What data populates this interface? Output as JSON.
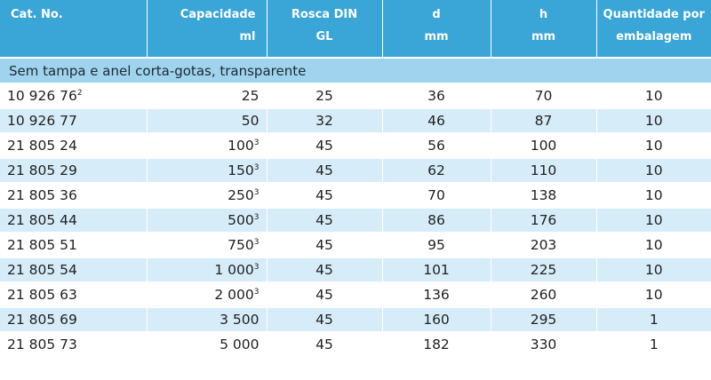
{
  "headers": {
    "cat_no": "Cat. No.",
    "capacidade": "Capacidade",
    "capacidade_unit": "ml",
    "rosca": "Rosca DIN",
    "rosca_unit": "GL",
    "d": "d",
    "d_unit": "mm",
    "h": "h",
    "h_unit": "mm",
    "quantidade": "Quantidade por",
    "quantidade_unit": "embalagem"
  },
  "section_title": "Sem tampa e anel corta-gotas, transparente",
  "rows": [
    {
      "cat": "10 926 76",
      "cat_sup": "2",
      "cap": "25",
      "cap_sup": "",
      "rosca": "25",
      "d": "36",
      "h": "70",
      "qty": "10"
    },
    {
      "cat": "10 926 77",
      "cat_sup": "",
      "cap": "50",
      "cap_sup": "",
      "rosca": "32",
      "d": "46",
      "h": "87",
      "qty": "10"
    },
    {
      "cat": "21 805 24",
      "cat_sup": "",
      "cap": "100",
      "cap_sup": "3",
      "rosca": "45",
      "d": "56",
      "h": "100",
      "qty": "10"
    },
    {
      "cat": "21 805 29",
      "cat_sup": "",
      "cap": "150",
      "cap_sup": "3",
      "rosca": "45",
      "d": "62",
      "h": "110",
      "qty": "10"
    },
    {
      "cat": "21 805 36",
      "cat_sup": "",
      "cap": "250",
      "cap_sup": "3",
      "rosca": "45",
      "d": "70",
      "h": "138",
      "qty": "10"
    },
    {
      "cat": "21 805 44",
      "cat_sup": "",
      "cap": "500",
      "cap_sup": "3",
      "rosca": "45",
      "d": "86",
      "h": "176",
      "qty": "10"
    },
    {
      "cat": "21 805 51",
      "cat_sup": "",
      "cap": "750",
      "cap_sup": "3",
      "rosca": "45",
      "d": "95",
      "h": "203",
      "qty": "10"
    },
    {
      "cat": "21 805 54",
      "cat_sup": "",
      "cap": "1 000",
      "cap_sup": "3",
      "rosca": "45",
      "d": "101",
      "h": "225",
      "qty": "10"
    },
    {
      "cat": "21 805 63",
      "cat_sup": "",
      "cap": "2 000",
      "cap_sup": "3",
      "rosca": "45",
      "d": "136",
      "h": "260",
      "qty": "10"
    },
    {
      "cat": "21 805 69",
      "cat_sup": "",
      "cap": "3 500",
      "cap_sup": "",
      "rosca": "45",
      "d": "160",
      "h": "295",
      "qty": "1"
    },
    {
      "cat": "21 805 73",
      "cat_sup": "",
      "cap": "5 000",
      "cap_sup": "",
      "rosca": "45",
      "d": "182",
      "h": "330",
      "qty": "1"
    }
  ],
  "colors": {
    "header_bg": "#3aa6d8",
    "section_bg": "#9fd3ee",
    "stripe_bg": "#d6ecf8"
  }
}
